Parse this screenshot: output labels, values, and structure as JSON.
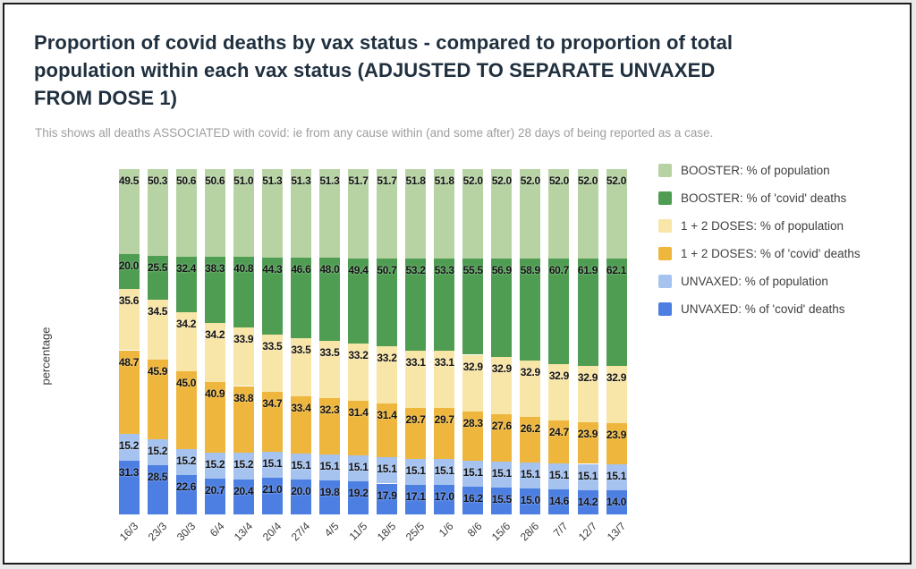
{
  "chart_data": {
    "type": "bar",
    "variant": "stacked-columns, each column stacks 100% of population + 100% of deaths (~200 total)",
    "title": "Proportion of covid deaths by vax status - compared to proportion of total population within each vax status (ADJUSTED TO SEPARATE UNVAXED FROM DOSE 1)",
    "title_lines": [
      "Proportion of covid deaths by vax status - compared to proportion of total",
      "population within each vax status (ADJUSTED TO SEPARATE UNVAXED",
      "FROM DOSE 1)"
    ],
    "subtitle": "This shows all deaths ASSOCIATED with covid: ie from any cause within (and some after) 28 days of being reported as a case.",
    "ylabel": "percentage",
    "xlabel": "",
    "grid": false,
    "legend_position": "right",
    "bar_label_format": "one-decimal",
    "categories": [
      "16/3",
      "23/3",
      "30/3",
      "6/4",
      "13/4",
      "20/4",
      "27/4",
      "4/5",
      "11/5",
      "18/5",
      "25/5",
      "1/6",
      "8/6",
      "15/6",
      "28/6",
      "7/7",
      "12/7",
      "13/7"
    ],
    "series": [
      {
        "name": "BOOSTER: % of population",
        "color": "#b7d3a4",
        "values": [
          49.5,
          50.3,
          50.6,
          50.6,
          51.0,
          51.3,
          51.3,
          51.3,
          51.7,
          51.7,
          51.8,
          51.8,
          52.0,
          52.0,
          52.0,
          52.0,
          52.0,
          52.0
        ]
      },
      {
        "name": "BOOSTER: % of 'covid' deaths",
        "color": "#4f9d53",
        "values": [
          20.0,
          25.5,
          32.4,
          38.3,
          40.8,
          44.3,
          46.6,
          48.0,
          49.4,
          50.7,
          53.2,
          53.3,
          55.5,
          56.9,
          58.9,
          60.7,
          61.9,
          62.1
        ]
      },
      {
        "name": "1 + 2 DOSES: % of population",
        "color": "#f8e5a8",
        "values": [
          35.6,
          34.5,
          34.2,
          34.2,
          33.9,
          33.5,
          33.5,
          33.5,
          33.2,
          33.2,
          33.1,
          33.1,
          32.9,
          32.9,
          32.9,
          32.9,
          32.9,
          32.9
        ]
      },
      {
        "name": "1 + 2 DOSES: % of 'covid' deaths",
        "color": "#eeb63d",
        "values": [
          48.7,
          45.9,
          45.0,
          40.9,
          38.8,
          34.7,
          33.4,
          32.3,
          31.4,
          31.4,
          29.7,
          29.7,
          28.3,
          27.6,
          26.2,
          24.7,
          23.9,
          23.9
        ]
      },
      {
        "name": "UNVAXED: % of population",
        "color": "#a6c3f0",
        "values": [
          15.2,
          15.2,
          15.2,
          15.2,
          15.2,
          15.1,
          15.1,
          15.1,
          15.1,
          15.1,
          15.1,
          15.1,
          15.1,
          15.1,
          15.1,
          15.1,
          15.1,
          15.1
        ]
      },
      {
        "name": "UNVAXED: % of 'covid' deaths",
        "color": "#4d7fe3",
        "values": [
          31.3,
          28.5,
          22.6,
          20.7,
          20.4,
          21.0,
          20.0,
          19.8,
          19.2,
          17.9,
          17.1,
          17.0,
          16.2,
          15.5,
          15.0,
          14.6,
          14.2,
          14.0
        ]
      }
    ]
  },
  "colors": {
    "frame_border": "#1c1c1c",
    "background": "#ffffff",
    "title_text": "#20303f",
    "subtitle_text": "#9e9e9e",
    "axis_text": "#3c3c3c",
    "legend_text": "#3f3f3f",
    "bar_label_text": "#141414"
  }
}
